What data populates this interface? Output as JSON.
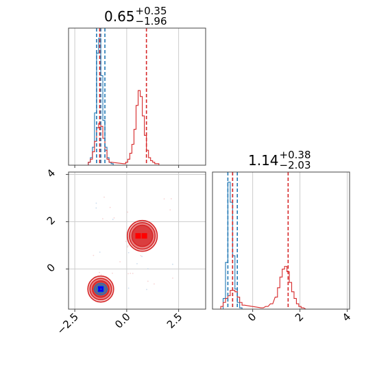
{
  "chart_data": [
    {
      "type": "histogram",
      "panel": "top-left",
      "title": {
        "value": "0.65",
        "upper": "+0.35",
        "lower": "−1.96"
      },
      "xlim": [
        -2.8,
        3.8
      ],
      "quantile_lines": [
        {
          "series": "blue",
          "values": [
            -1.45,
            -1.25,
            -1.05
          ]
        },
        {
          "series": "red",
          "values": [
            -1.3,
            0.95
          ]
        }
      ],
      "series": [
        {
          "name": "",
          "color": "#1f77b4",
          "x": [
            -1.8,
            -1.7,
            -1.6,
            -1.5,
            -1.4,
            -1.3,
            -1.2,
            -1.1,
            -1.0,
            -0.9,
            -0.8,
            -0.7
          ],
          "y": [
            0.02,
            0.05,
            0.12,
            0.35,
            0.75,
            0.85,
            0.6,
            0.3,
            0.12,
            0.05,
            0.02,
            0.01
          ]
        },
        {
          "name": "",
          "color": "#d62728",
          "x": [
            -1.8,
            -1.7,
            -1.6,
            -1.5,
            -1.4,
            -1.3,
            -1.2,
            -1.1,
            -1.0,
            -0.9,
            -0.8,
            -0.1,
            0.0,
            0.1,
            0.2,
            0.3,
            0.4,
            0.5,
            0.6,
            0.7,
            0.8,
            0.9,
            1.0,
            1.1,
            1.2,
            1.3,
            1.4,
            1.5,
            1.6
          ],
          "y": [
            0.02,
            0.04,
            0.09,
            0.16,
            0.25,
            0.28,
            0.26,
            0.18,
            0.1,
            0.04,
            0.02,
            0.01,
            0.02,
            0.04,
            0.08,
            0.14,
            0.24,
            0.4,
            0.5,
            0.46,
            0.33,
            0.2,
            0.1,
            0.05,
            0.03,
            0.02,
            0.01,
            0.01,
            0.0
          ]
        }
      ],
      "x_ticks": [
        -2.5,
        0.0,
        2.5
      ]
    },
    {
      "type": "contour",
      "panel": "bottom-left",
      "xlim": [
        -2.8,
        3.8
      ],
      "ylim": [
        -1.7,
        4.1
      ],
      "x_ticks": [
        -2.5,
        0.0,
        2.5
      ],
      "y_ticks": [
        0,
        2,
        4
      ],
      "x_tick_labels": [
        "−2.5",
        "0.0",
        "2.5"
      ],
      "y_tick_labels": [
        "0",
        "2",
        "4"
      ],
      "series": [
        {
          "name": "",
          "color": "#d62728",
          "modes": [
            {
              "x": 0.75,
              "y": 1.4,
              "rx": [
                0.5,
                0.62,
                0.72
              ],
              "ry": [
                0.45,
                0.56,
                0.65
              ]
            },
            {
              "x": -1.25,
              "y": -0.85,
              "rx": [
                0.4,
                0.52,
                0.62
              ],
              "ry": [
                0.35,
                0.45,
                0.55
              ]
            }
          ],
          "peaks": [
            [
              0.55,
              1.4
            ],
            [
              0.85,
              1.4
            ]
          ]
        },
        {
          "name": "",
          "color": "#1f77b4",
          "modes": [
            {
              "x": -1.25,
              "y": -0.85,
              "rx": [
                0.2,
                0.3
              ],
              "ry": [
                0.16,
                0.24
              ]
            }
          ],
          "peaks": [
            [
              -1.25,
              -0.85
            ]
          ]
        }
      ],
      "grid": true
    },
    {
      "type": "histogram",
      "panel": "bottom-right",
      "title": {
        "value": "1.14",
        "upper": "+0.38",
        "lower": "−2.03"
      },
      "xlim": [
        -1.7,
        4.1
      ],
      "x_ticks": [
        0,
        2,
        4
      ],
      "x_tick_labels": [
        "0",
        "2",
        "4"
      ],
      "quantile_lines": [
        {
          "series": "blue",
          "values": [
            -1.05,
            -0.85,
            -0.65
          ]
        },
        {
          "series": "red",
          "values": [
            -0.85,
            1.5
          ]
        }
      ],
      "series": [
        {
          "name": "",
          "color": "#1f77b4",
          "x": [
            -1.2,
            -1.1,
            -1.0,
            -0.9,
            -0.8,
            -0.7,
            -0.6,
            -0.5
          ],
          "y": [
            0.08,
            0.35,
            0.95,
            0.8,
            0.4,
            0.15,
            0.05,
            0.01
          ]
        },
        {
          "name": "",
          "color": "#d62728",
          "x": [
            -1.3,
            -1.2,
            -1.1,
            -1.0,
            -0.9,
            -0.8,
            -0.7,
            -0.6,
            -0.5,
            -0.4,
            0.4,
            0.6,
            0.8,
            1.0,
            1.1,
            1.2,
            1.3,
            1.4,
            1.5,
            1.6,
            1.7,
            1.8,
            1.9,
            2.0,
            2.1,
            2.3
          ],
          "y": [
            0.02,
            0.05,
            0.08,
            0.1,
            0.14,
            0.14,
            0.13,
            0.09,
            0.05,
            0.03,
            0.01,
            0.02,
            0.04,
            0.09,
            0.16,
            0.24,
            0.3,
            0.32,
            0.28,
            0.2,
            0.13,
            0.08,
            0.04,
            0.02,
            0.01,
            0.0
          ]
        }
      ]
    }
  ]
}
